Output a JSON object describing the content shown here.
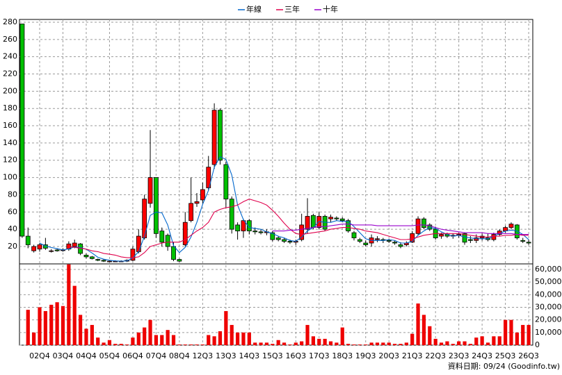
{
  "chart_data": {
    "type": "candlestick",
    "categories": [
      null,
      null,
      null,
      "02Q4",
      null,
      null,
      null,
      "03Q4",
      null,
      null,
      null,
      "04Q4",
      null,
      null,
      null,
      "05Q4",
      null,
      null,
      null,
      "06Q4",
      null,
      null,
      null,
      "07Q4",
      null,
      null,
      null,
      "08Q4",
      null,
      null,
      null,
      "12Q3",
      null,
      null,
      null,
      "13Q3",
      null,
      null,
      null,
      "14Q3",
      null,
      null,
      null,
      "15Q3",
      null,
      null,
      null,
      "16Q3",
      null,
      null,
      null,
      "17Q3",
      null,
      null,
      null,
      "18Q3",
      null,
      null,
      null,
      "19Q3",
      null,
      null,
      null,
      "20Q3",
      null,
      null,
      null,
      "21Q3",
      null,
      null,
      null,
      "22Q3",
      null,
      null,
      null,
      "23Q3",
      null,
      null,
      null,
      "24Q3",
      null,
      null,
      null,
      "25Q3",
      null,
      null,
      null,
      "26Q3"
    ],
    "open": [
      278,
      32,
      15,
      17,
      22,
      15,
      16,
      16,
      17,
      20,
      23,
      10,
      8,
      5,
      4,
      3,
      3,
      3,
      3,
      4,
      14,
      30,
      70,
      100,
      38,
      33,
      20,
      5,
      22,
      50,
      70,
      74,
      88,
      115,
      178,
      115,
      75,
      45,
      38,
      50,
      38,
      37,
      36,
      36,
      30,
      28,
      26,
      25,
      28,
      40,
      56,
      42,
      55,
      52,
      53,
      52,
      50,
      36,
      28,
      24,
      24,
      28,
      28,
      27,
      25,
      22,
      22,
      25,
      35,
      52,
      45,
      40,
      32,
      34,
      32,
      33,
      35,
      28,
      27,
      30,
      30,
      28,
      34,
      38,
      42,
      45,
      27,
      25
    ],
    "high": [
      278,
      42,
      22,
      24,
      30,
      17,
      18,
      18,
      26,
      28,
      24,
      12,
      9,
      6,
      5,
      4,
      4,
      4,
      5,
      20,
      40,
      80,
      155,
      100,
      42,
      35,
      25,
      6,
      60,
      100,
      82,
      94,
      125,
      186,
      180,
      118,
      78,
      48,
      52,
      52,
      42,
      40,
      40,
      38,
      32,
      30,
      28,
      28,
      58,
      76,
      58,
      60,
      57,
      57,
      55,
      54,
      52,
      38,
      30,
      27,
      34,
      32,
      30,
      29,
      27,
      25,
      26,
      38,
      55,
      54,
      47,
      43,
      36,
      36,
      35,
      36,
      36,
      32,
      34,
      35,
      35,
      36,
      40,
      44,
      48,
      46,
      30,
      28
    ],
    "low": [
      30,
      18,
      13,
      14,
      16,
      13,
      14,
      14,
      15,
      18,
      10,
      6,
      5,
      3,
      2,
      2,
      2,
      2,
      2,
      3,
      12,
      28,
      65,
      30,
      20,
      15,
      3,
      2,
      20,
      48,
      66,
      70,
      85,
      110,
      115,
      65,
      35,
      28,
      30,
      34,
      34,
      34,
      33,
      26,
      26,
      24,
      23,
      22,
      26,
      35,
      40,
      40,
      38,
      48,
      50,
      48,
      36,
      27,
      24,
      20,
      20,
      25,
      24,
      24,
      22,
      18,
      20,
      24,
      33,
      40,
      38,
      28,
      29,
      30,
      29,
      30,
      22,
      24,
      24,
      27,
      26,
      26,
      32,
      36,
      40,
      28,
      24,
      22
    ],
    "close": [
      32,
      22,
      20,
      22,
      18,
      15,
      15,
      16,
      23,
      24,
      12,
      8,
      6,
      4,
      3,
      3,
      3,
      3,
      4,
      17,
      32,
      75,
      100,
      35,
      25,
      20,
      5,
      3,
      48,
      70,
      72,
      86,
      112,
      178,
      120,
      75,
      40,
      38,
      50,
      38,
      37,
      36,
      37,
      28,
      28,
      26,
      25,
      26,
      45,
      55,
      42,
      55,
      40,
      54,
      52,
      50,
      38,
      30,
      26,
      22,
      30,
      29,
      27,
      26,
      24,
      20,
      24,
      35,
      52,
      42,
      40,
      30,
      34,
      32,
      33,
      34,
      25,
      27,
      30,
      32,
      28,
      34,
      38,
      42,
      46,
      30,
      26,
      24
    ],
    "up_color": "#ff0000",
    "down_color": "#00c000",
    "series": [
      {
        "name": "年線",
        "color": "#0066cc",
        "values": [
          null,
          null,
          null,
          24,
          20.5,
          18.8,
          17.5,
          16,
          17.3,
          19.5,
          18.8,
          16.8,
          12.5,
          7.5,
          5.3,
          4,
          3.3,
          3,
          3.3,
          6.8,
          14,
          32,
          56,
          60,
          59,
          45,
          21,
          13,
          19,
          31,
          48,
          69,
          85,
          112,
          124,
          121,
          103,
          68,
          51,
          42,
          41,
          40,
          37,
          35,
          32,
          30,
          27,
          26,
          31,
          38,
          42,
          49,
          48,
          48,
          50,
          49,
          49,
          43,
          36,
          29,
          27,
          27,
          27,
          28,
          27,
          24,
          24,
          26,
          33,
          38,
          42,
          41,
          37,
          34,
          32,
          33,
          31,
          30,
          29,
          29,
          29,
          32,
          35,
          38,
          39,
          38,
          34,
          28
        ]
      },
      {
        "name": "三年",
        "color": "#e0004c",
        "values": [
          null,
          null,
          null,
          null,
          null,
          null,
          null,
          null,
          20,
          19,
          18,
          17,
          15,
          14,
          12,
          11,
          10,
          8,
          7,
          7,
          8,
          13,
          20,
          22,
          24,
          25,
          25,
          25,
          28,
          33,
          38,
          42,
          48,
          60,
          63,
          65,
          66,
          68,
          72,
          75,
          73,
          71,
          68,
          62,
          55,
          47,
          40,
          35,
          34,
          35,
          36,
          37,
          38,
          40,
          41,
          42,
          42,
          41,
          40,
          38,
          37,
          36,
          34,
          32,
          30,
          28,
          28,
          29,
          31,
          33,
          34,
          35,
          35,
          35,
          35,
          35,
          34,
          33,
          32,
          31,
          31,
          32,
          32,
          33,
          33,
          34,
          33,
          33
        ]
      },
      {
        "name": "十年",
        "color": "#9900cc",
        "values": [
          null,
          null,
          null,
          null,
          null,
          null,
          null,
          null,
          null,
          null,
          null,
          null,
          null,
          null,
          null,
          null,
          null,
          null,
          null,
          null,
          null,
          null,
          null,
          null,
          null,
          null,
          null,
          null,
          null,
          null,
          null,
          null,
          null,
          null,
          null,
          null,
          null,
          null,
          null,
          null,
          null,
          null,
          null,
          38,
          38,
          38,
          39,
          39,
          40,
          41,
          42,
          43,
          43,
          44,
          45,
          46,
          46,
          45,
          45,
          45,
          45,
          44,
          44,
          44,
          44,
          44,
          44,
          44,
          45,
          45,
          44,
          42,
          40,
          39,
          38,
          37,
          36,
          36,
          36,
          36,
          35,
          35,
          35,
          35,
          35,
          34,
          34,
          34
        ]
      }
    ],
    "ylim": [
      0,
      280
    ],
    "yticks": [
      20,
      40,
      60,
      80,
      100,
      120,
      140,
      160,
      180,
      200,
      220,
      240,
      260,
      280
    ],
    "volume": {
      "color": "#ee0000",
      "values": [
        0,
        28000,
        10000,
        30000,
        27000,
        32000,
        34000,
        31000,
        64000,
        47000,
        24000,
        13000,
        16000,
        6000,
        2000,
        4000,
        1000,
        1000,
        500,
        6000,
        10000,
        14000,
        20000,
        8000,
        8000,
        12000,
        8000,
        500,
        500,
        500,
        500,
        500,
        8000,
        7000,
        11000,
        27000,
        16000,
        10000,
        10000,
        10000,
        2000,
        2000,
        2000,
        1000,
        4000,
        2000,
        500,
        2000,
        3000,
        16000,
        7000,
        5000,
        5000,
        3000,
        2000,
        14000,
        1000,
        500,
        500,
        500,
        2000,
        2000,
        2000,
        2000,
        1000,
        1000,
        2000,
        9000,
        33000,
        24000,
        15000,
        5000,
        2000,
        3000,
        1000,
        3000,
        3000,
        1000,
        6000,
        7000,
        2000,
        7000,
        7000,
        20000,
        20000,
        10000,
        16000,
        16000
      ],
      "ylim": [
        0,
        64400
      ],
      "yticks": [
        0,
        {
          "value": 10000,
          "label": "10,000"
        },
        {
          "value": 20000,
          "label": "20,000"
        },
        {
          "value": 30000,
          "label": "30,000"
        },
        {
          "value": 40000,
          "label": "40,000"
        },
        {
          "value": 50000,
          "label": "50,000"
        },
        {
          "value": 60000,
          "label": "60,000"
        }
      ]
    },
    "grid": true,
    "source_note": "資料日期: 09/24 (Goodinfo.tw)"
  }
}
